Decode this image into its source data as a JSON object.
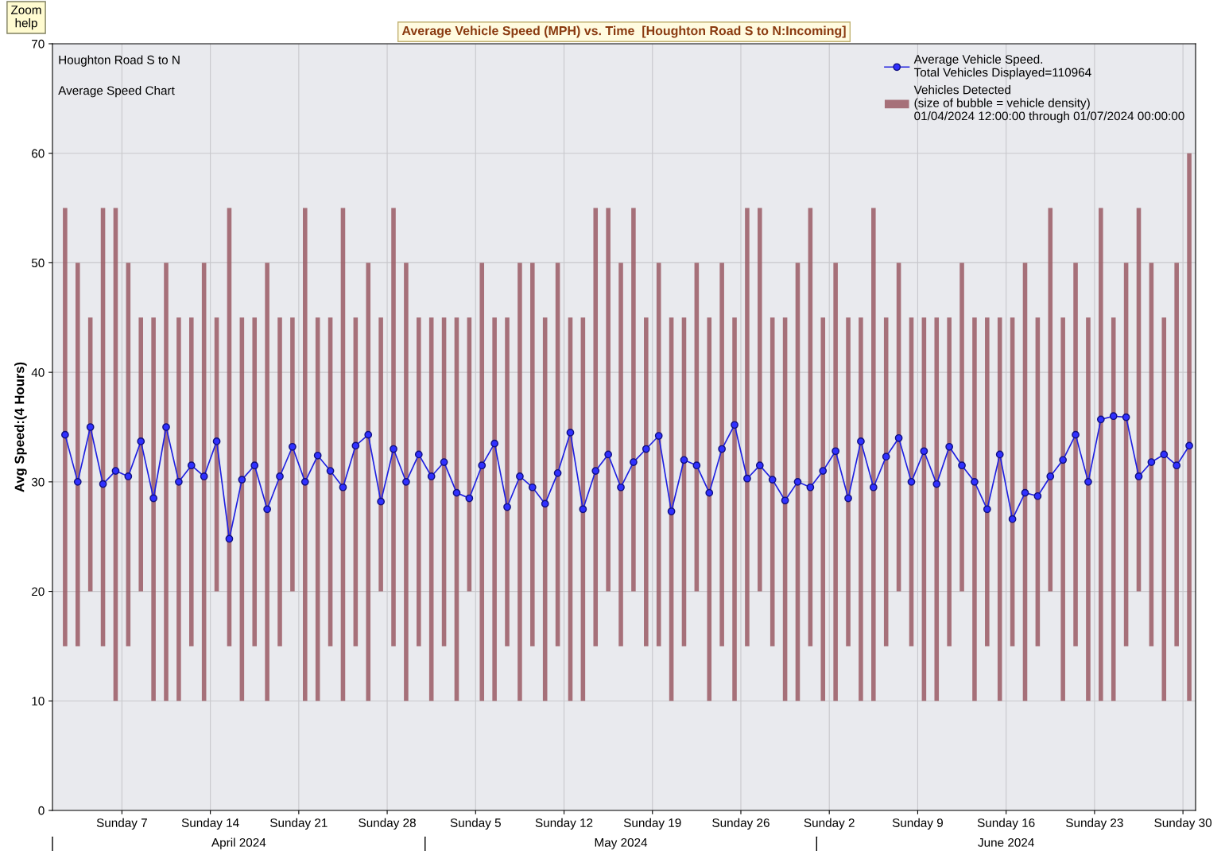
{
  "chart_data": {
    "type": "line",
    "title": "Average Vehicle Speed (MPH) vs. Time  [Houghton Road S to N:Incoming]",
    "ylabel": "Avg Speed:(4 Hours)",
    "annotations": [
      "Zoom\nhelp",
      "Houghton Road S to N",
      "Average Speed Chart",
      "April 2024",
      "May 2024",
      "June 2024"
    ],
    "x": [
      "2024-04-02T12:00",
      "2024-04-03T12:00",
      "2024-04-04T12:00",
      "2024-04-05T12:00",
      "2024-04-06T12:00",
      "2024-04-07T12:00",
      "2024-04-08T12:00",
      "2024-04-09T12:00",
      "2024-04-10T12:00",
      "2024-04-11T12:00",
      "2024-04-12T12:00",
      "2024-04-13T12:00",
      "2024-04-14T12:00",
      "2024-04-15T12:00",
      "2024-04-16T12:00",
      "2024-04-17T12:00",
      "2024-04-18T12:00",
      "2024-04-19T12:00",
      "2024-04-20T12:00",
      "2024-04-21T12:00",
      "2024-04-22T12:00",
      "2024-04-23T12:00",
      "2024-04-24T12:00",
      "2024-04-25T12:00",
      "2024-04-26T12:00",
      "2024-04-27T12:00",
      "2024-04-28T12:00",
      "2024-04-29T12:00",
      "2024-04-30T12:00",
      "2024-05-01T12:00",
      "2024-05-02T12:00",
      "2024-05-03T12:00",
      "2024-05-04T12:00",
      "2024-05-05T12:00",
      "2024-05-06T12:00",
      "2024-05-07T12:00",
      "2024-05-08T12:00",
      "2024-05-09T12:00",
      "2024-05-10T12:00",
      "2024-05-11T12:00",
      "2024-05-12T12:00",
      "2024-05-13T12:00",
      "2024-05-14T12:00",
      "2024-05-15T12:00",
      "2024-05-16T12:00",
      "2024-05-17T12:00",
      "2024-05-18T12:00",
      "2024-05-19T12:00",
      "2024-05-20T12:00",
      "2024-05-21T12:00",
      "2024-05-22T12:00",
      "2024-05-23T12:00",
      "2024-05-24T12:00",
      "2024-05-25T12:00",
      "2024-05-26T12:00",
      "2024-05-27T12:00",
      "2024-05-28T12:00",
      "2024-05-29T12:00",
      "2024-05-30T12:00",
      "2024-05-31T12:00",
      "2024-06-01T12:00",
      "2024-06-02T12:00",
      "2024-06-03T12:00",
      "2024-06-04T12:00",
      "2024-06-05T12:00",
      "2024-06-06T12:00",
      "2024-06-07T12:00",
      "2024-06-08T12:00",
      "2024-06-09T12:00",
      "2024-06-10T12:00",
      "2024-06-11T12:00",
      "2024-06-12T12:00",
      "2024-06-13T12:00",
      "2024-06-14T12:00",
      "2024-06-15T12:00",
      "2024-06-16T12:00",
      "2024-06-17T12:00",
      "2024-06-18T12:00",
      "2024-06-19T12:00",
      "2024-06-20T12:00",
      "2024-06-21T12:00",
      "2024-06-22T12:00",
      "2024-06-23T12:00",
      "2024-06-24T12:00",
      "2024-06-25T12:00",
      "2024-06-26T12:00",
      "2024-06-27T12:00",
      "2024-06-28T12:00",
      "2024-06-29T12:00",
      "2024-06-30T12:00"
    ],
    "series": [
      {
        "type": "bar",
        "name": "Vehicles Detected\n(size of bubble = vehicle density)\n01/04/2024 12:00:00 through 01/07/2024 00:00:00",
        "color": "#9a5a64",
        "base": [
          15,
          15,
          20,
          15,
          10,
          15,
          20,
          10,
          10,
          10,
          15,
          10,
          20,
          15,
          10,
          15,
          10,
          15,
          20,
          10,
          10,
          15,
          10,
          15,
          10,
          20,
          15,
          10,
          15,
          10,
          15,
          10,
          20,
          10,
          10,
          15,
          10,
          15,
          10,
          15,
          10,
          10,
          15,
          20,
          15,
          20,
          15,
          15,
          10,
          15,
          20,
          10,
          15,
          10,
          15,
          20,
          15,
          10,
          10,
          15,
          10,
          10,
          15,
          10,
          10,
          15,
          20,
          15,
          10,
          10,
          15,
          20,
          10,
          15,
          10,
          15,
          10,
          15,
          20,
          10,
          15,
          10,
          10,
          10,
          15,
          20,
          15,
          10,
          15,
          10
        ],
        "values": [
          40,
          35,
          25,
          40,
          45,
          35,
          25,
          35,
          40,
          35,
          30,
          40,
          25,
          40,
          35,
          30,
          40,
          30,
          25,
          45,
          35,
          30,
          45,
          30,
          40,
          25,
          40,
          40,
          30,
          35,
          30,
          35,
          25,
          40,
          35,
          30,
          40,
          35,
          35,
          35,
          35,
          35,
          40,
          35,
          35,
          35,
          30,
          35,
          35,
          30,
          30,
          35,
          35,
          35,
          40,
          35,
          30,
          35,
          40,
          40,
          35,
          40,
          30,
          35,
          45,
          30,
          30,
          30,
          35,
          35,
          30,
          30,
          35,
          30,
          35,
          30,
          40,
          30,
          35,
          35,
          35,
          35,
          45,
          35,
          35,
          35,
          35,
          35,
          35,
          50
        ]
      },
      {
        "name": "Average Vehicle Speed.\nTotal Vehicles Displayed=110964",
        "color": "#2020e0",
        "values": [
          34.3,
          30,
          35,
          29.8,
          31,
          30.5,
          33.7,
          28.5,
          35,
          30,
          31.5,
          30.5,
          33.7,
          24.8,
          30.2,
          31.5,
          27.5,
          30.5,
          33.2,
          30,
          32.4,
          31,
          29.5,
          33.3,
          34.3,
          28.2,
          33,
          30,
          32.5,
          30.5,
          31.8,
          29,
          28.5,
          31.5,
          33.5,
          27.7,
          30.5,
          29.5,
          28,
          30.8,
          34.5,
          27.5,
          31,
          32.5,
          29.5,
          31.8,
          33,
          34.2,
          27.3,
          32,
          31.5,
          29,
          33,
          35.2,
          30.3,
          31.5,
          30.2,
          28.3,
          30,
          29.5,
          31,
          32.8,
          28.5,
          33.7,
          29.5,
          32.3,
          34,
          30,
          32.8,
          29.8,
          33.2,
          31.5,
          30,
          27.5,
          32.5,
          26.6,
          29,
          28.7,
          30.5,
          32,
          34.3,
          30,
          35.7,
          36,
          35.9,
          30.5,
          31.8,
          32.5,
          31.5,
          33.3
        ]
      }
    ],
    "marker": "circle",
    "legend": "top right",
    "grid": true,
    "xlim": [
      "2024-04-01T12:00",
      "2024-07-01T00:00"
    ],
    "xticks": [
      {
        "value": "2024-04-07",
        "label": "Sunday 7"
      },
      {
        "value": "2024-04-14",
        "label": "Sunday 14"
      },
      {
        "value": "2024-04-21",
        "label": "Sunday 21"
      },
      {
        "value": "2024-04-28",
        "label": "Sunday 28"
      },
      {
        "value": "2024-05-05",
        "label": "Sunday 5"
      },
      {
        "value": "2024-05-12",
        "label": "Sunday 12"
      },
      {
        "value": "2024-05-19",
        "label": "Sunday 19"
      },
      {
        "value": "2024-05-26",
        "label": "Sunday 26"
      },
      {
        "value": "2024-06-02",
        "label": "Sunday 2"
      },
      {
        "value": "2024-06-09",
        "label": "Sunday 9"
      },
      {
        "value": "2024-06-16",
        "label": "Sunday 16"
      },
      {
        "value": "2024-06-23",
        "label": "Sunday 23"
      },
      {
        "value": "2024-06-30",
        "label": "Sunday 30"
      }
    ],
    "ylim": [
      0,
      70
    ],
    "yticks": [
      0,
      10,
      20,
      30,
      40,
      50,
      60,
      70
    ]
  }
}
